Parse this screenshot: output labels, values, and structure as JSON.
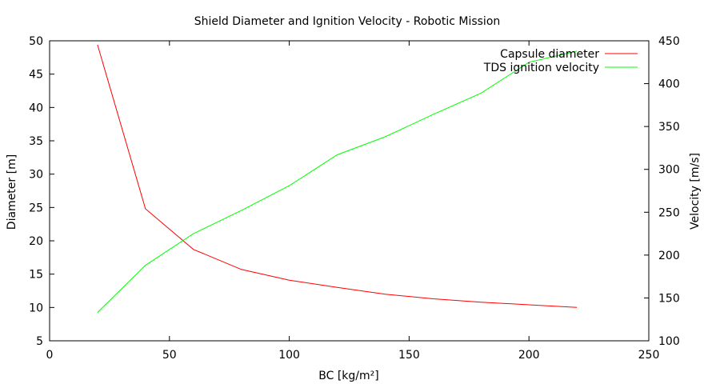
{
  "chart_data": {
    "type": "line",
    "title": "Shield Diameter and Ignition Velocity - Robotic Mission",
    "xlabel": "BC [kg/m²]",
    "ylabel": "Diameter [m]",
    "y2label": "Velocity  [m/s]",
    "xlim": [
      0,
      250
    ],
    "ylim": [
      5,
      50
    ],
    "y2lim": [
      100,
      450
    ],
    "xticks": [
      0,
      50,
      100,
      150,
      200,
      250
    ],
    "yticks": [
      5,
      10,
      15,
      20,
      25,
      30,
      35,
      40,
      45,
      50
    ],
    "y2ticks": [
      100,
      150,
      200,
      250,
      300,
      350,
      400,
      450
    ],
    "grid": false,
    "legend_position": "top-right",
    "series": [
      {
        "name": "Capsule diameter",
        "axis": "left",
        "color": "#ff0000",
        "x": [
          20,
          40,
          60,
          80,
          100,
          120,
          140,
          160,
          180,
          200,
          220
        ],
        "y": [
          49.4,
          24.8,
          18.7,
          15.7,
          14.1,
          13.0,
          12.0,
          11.3,
          10.8,
          10.4,
          10.0
        ]
      },
      {
        "name": "TDS ignition velocity",
        "axis": "right",
        "color": "#00ff00",
        "x": [
          20,
          40,
          60,
          80,
          100,
          120,
          140,
          160,
          180,
          200,
          220
        ],
        "y": [
          133,
          188,
          225,
          252,
          281,
          317,
          338,
          364,
          389,
          425,
          438
        ]
      }
    ]
  }
}
